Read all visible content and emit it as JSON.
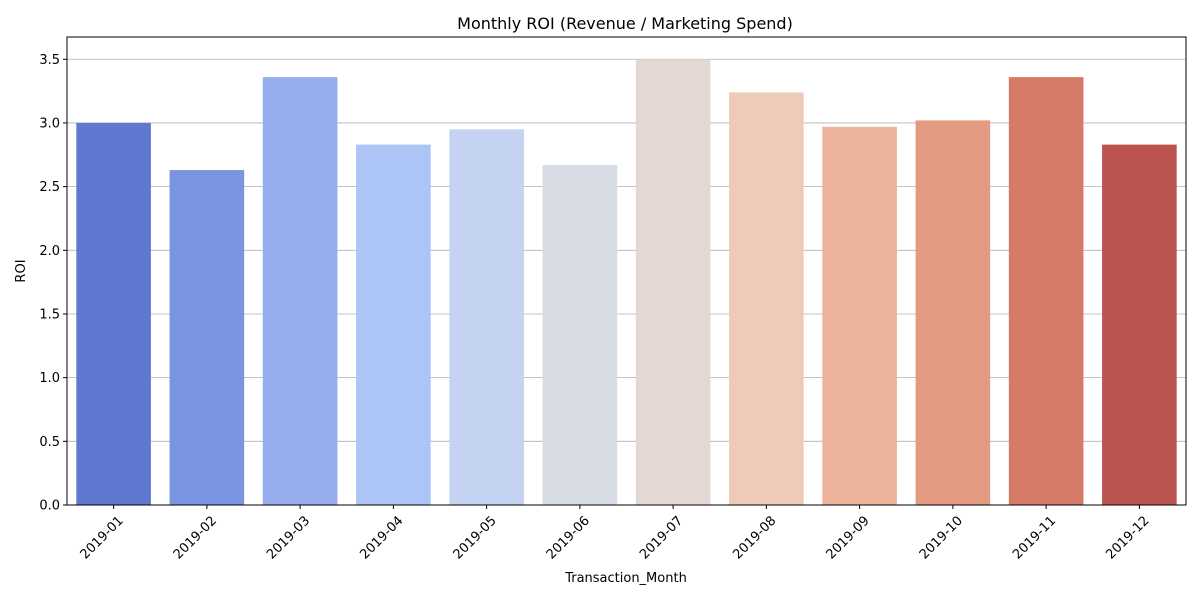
{
  "chart_data": {
    "type": "bar",
    "title": "Monthly ROI (Revenue / Marketing Spend)",
    "xlabel": "Transaction_Month",
    "ylabel": "ROI",
    "categories": [
      "2019-01",
      "2019-02",
      "2019-03",
      "2019-04",
      "2019-05",
      "2019-06",
      "2019-07",
      "2019-08",
      "2019-09",
      "2019-10",
      "2019-11",
      "2019-12"
    ],
    "values": [
      3.0,
      2.63,
      3.36,
      2.83,
      2.95,
      2.67,
      3.5,
      3.24,
      2.97,
      3.02,
      3.36,
      2.83
    ],
    "ylim": [
      0,
      3.675
    ],
    "yticks": [
      "0.0",
      "0.5",
      "1.0",
      "1.5",
      "2.0",
      "2.5",
      "3.0",
      "3.5"
    ],
    "grid": "horizontal",
    "colors": [
      "#6078cf",
      "#7b94e1",
      "#95adee",
      "#acc4f6",
      "#c4d3f2",
      "#d6dbe4",
      "#e4d8d4",
      "#eecbb9",
      "#ebb39a",
      "#e29b80",
      "#d47a67",
      "#bb5350"
    ]
  }
}
